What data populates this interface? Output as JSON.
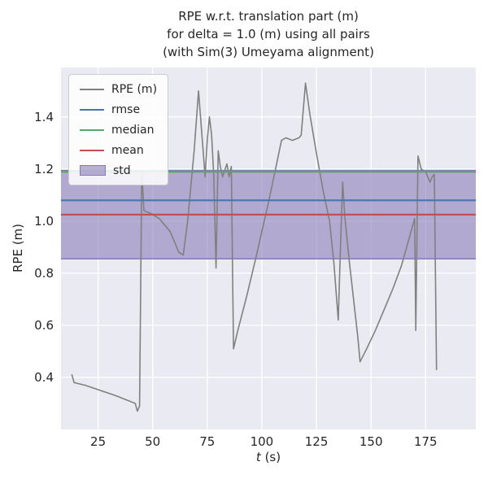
{
  "title": {
    "line1": "RPE w.r.t. translation part (m)",
    "line2": "for delta = 1.0 (m) using all pairs",
    "line3": "(with Sim(3) Umeyama alignment)"
  },
  "chart_data": {
    "type": "line",
    "xlabel": {
      "var": "t",
      "unit": "(s)"
    },
    "ylabel": "RPE (m)",
    "xlim": [
      8,
      198
    ],
    "ylim": [
      0.2,
      1.59
    ],
    "x_ticks": [
      25,
      50,
      75,
      100,
      125,
      150,
      175
    ],
    "y_ticks": [
      0.4,
      0.6,
      0.8,
      1.0,
      1.2,
      1.4
    ],
    "grid": true,
    "legend_position": "upper left",
    "colors": {
      "axes_bg": "#eaeaf2",
      "grid": "#ffffff",
      "text": "#262626",
      "rpe_line": "#808080",
      "rmse": "#4c72b0",
      "median": "#55a868",
      "mean": "#c44e52",
      "std": "#8172b2"
    },
    "series": [
      {
        "name": "RPE (m)",
        "kind": "line",
        "color": "#808080",
        "points": [
          [
            13,
            0.41
          ],
          [
            14,
            0.38
          ],
          [
            19,
            0.37
          ],
          [
            26,
            0.35
          ],
          [
            33,
            0.33
          ],
          [
            39,
            0.31
          ],
          [
            42,
            0.3
          ],
          [
            43,
            0.27
          ],
          [
            44,
            0.29
          ],
          [
            45,
            1.19
          ],
          [
            46,
            1.04
          ],
          [
            49,
            1.03
          ],
          [
            53,
            1.01
          ],
          [
            58,
            0.96
          ],
          [
            62,
            0.88
          ],
          [
            64,
            0.87
          ],
          [
            66,
            1.0
          ],
          [
            69,
            1.27
          ],
          [
            71,
            1.5
          ],
          [
            73,
            1.28
          ],
          [
            74,
            1.17
          ],
          [
            75,
            1.31
          ],
          [
            76,
            1.4
          ],
          [
            77,
            1.33
          ],
          [
            78,
            1.17
          ],
          [
            79,
            0.82
          ],
          [
            80,
            1.27
          ],
          [
            81,
            1.21
          ],
          [
            82,
            1.17
          ],
          [
            84,
            1.22
          ],
          [
            85,
            1.17
          ],
          [
            86,
            1.21
          ],
          [
            87,
            0.51
          ],
          [
            89,
            0.58
          ],
          [
            93,
            0.71
          ],
          [
            97,
            0.85
          ],
          [
            100,
            0.96
          ],
          [
            103,
            1.07
          ],
          [
            106,
            1.19
          ],
          [
            109,
            1.31
          ],
          [
            111,
            1.32
          ],
          [
            114,
            1.31
          ],
          [
            117,
            1.32
          ],
          [
            118,
            1.33
          ],
          [
            120,
            1.53
          ],
          [
            122,
            1.41
          ],
          [
            125,
            1.26
          ],
          [
            128,
            1.12
          ],
          [
            131,
            1.0
          ],
          [
            133,
            0.84
          ],
          [
            135,
            0.62
          ],
          [
            136,
            0.9
          ],
          [
            137,
            1.15
          ],
          [
            138,
            1.02
          ],
          [
            140,
            0.85
          ],
          [
            142,
            0.7
          ],
          [
            144,
            0.55
          ],
          [
            145,
            0.46
          ],
          [
            148,
            0.51
          ],
          [
            152,
            0.58
          ],
          [
            156,
            0.66
          ],
          [
            160,
            0.74
          ],
          [
            164,
            0.83
          ],
          [
            167,
            0.92
          ],
          [
            170,
            1.01
          ],
          [
            170.5,
            0.58
          ],
          [
            171.5,
            1.25
          ],
          [
            173,
            1.2
          ],
          [
            175,
            1.19
          ],
          [
            177,
            1.15
          ],
          [
            178,
            1.17
          ],
          [
            179,
            1.18
          ],
          [
            180,
            0.43
          ]
        ]
      },
      {
        "name": "rmse",
        "kind": "hline",
        "color": "#4c72b0",
        "value": 1.08
      },
      {
        "name": "median",
        "kind": "hline",
        "color": "#55a868",
        "value": 1.19
      },
      {
        "name": "mean",
        "kind": "hline",
        "color": "#c44e52",
        "value": 1.025
      },
      {
        "name": "std",
        "kind": "band",
        "color": "#8172b2",
        "range": [
          0.855,
          1.195
        ]
      }
    ]
  }
}
